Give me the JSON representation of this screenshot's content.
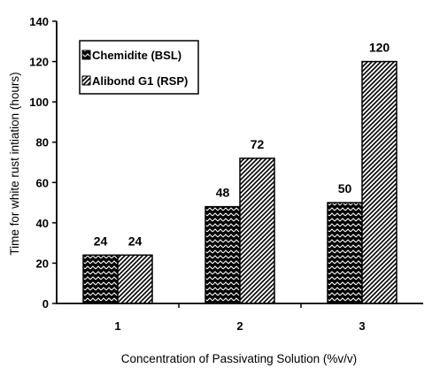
{
  "chart_data": {
    "type": "bar",
    "categories": [
      "1",
      "2",
      "3"
    ],
    "series": [
      {
        "name": "Chemidite (BSL)",
        "values": [
          24,
          48,
          50
        ],
        "pattern": "zigzag"
      },
      {
        "name": "Alibond G1 (RSP)",
        "values": [
          24,
          72,
          120
        ],
        "pattern": "diagonal-hatch"
      }
    ],
    "title": "",
    "xlabel": "Concentration of Passivating Solution (%v/v)",
    "ylabel": "Time for white rust intiation (hours)",
    "ylim": [
      0,
      140
    ],
    "yticks": [
      0,
      20,
      40,
      60,
      80,
      100,
      120,
      140
    ],
    "grid": false,
    "legend_position": "top-left",
    "data_labels": true,
    "colors": {
      "bar_fill": "#000000",
      "bar_background": "#ffffff",
      "axis": "#000000"
    }
  }
}
